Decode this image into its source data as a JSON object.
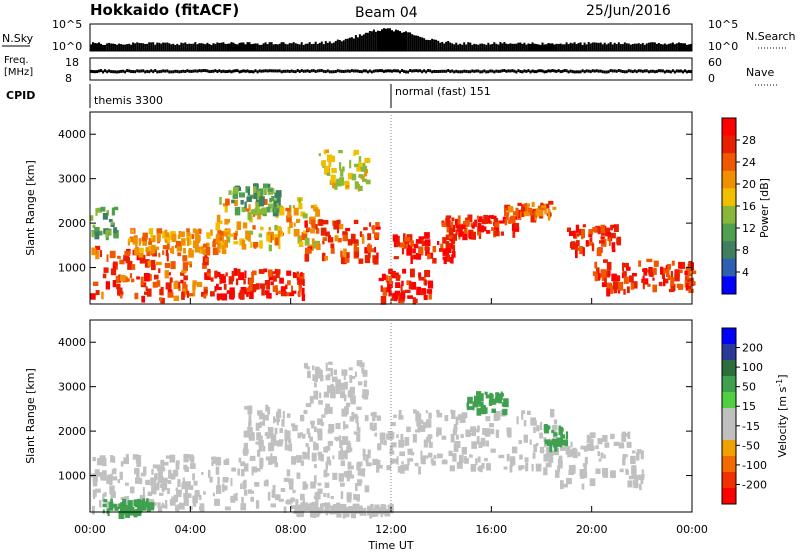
{
  "header": {
    "station": "Hokkaido (fitACF)",
    "beam": "Beam 04",
    "date": "25/Jun/2016"
  },
  "top_panels": {
    "nsky_label": "N.Sky",
    "nsky_ticks": [
      "10^5",
      "10^0"
    ],
    "nsearch_label": "N.Search",
    "nsearch_ticks": [
      "10^5",
      "10^0"
    ],
    "freq_label_1": "Freq.",
    "freq_label_2": "[MHz]",
    "freq_ticks": [
      "18",
      "8"
    ],
    "nave_label": "Nave",
    "nave_ticks": [
      "60",
      "0"
    ],
    "cpid_label": "CPID",
    "cpid_segments": [
      "themis 3300",
      "normal (fast) 151"
    ]
  },
  "colors": {
    "power_scale": [
      "#0000ff",
      "#2f5fb0",
      "#3f7f5f",
      "#4f9f4f",
      "#88b83a",
      "#f0c000",
      "#f09000",
      "#f05800",
      "#e82000",
      "#ff0000"
    ],
    "velocity_scale": [
      "#0000ff",
      "#2a3a9a",
      "#2c6f3c",
      "#3fa04f",
      "#50d040",
      "#c0c0c0",
      "#c0c0c0",
      "#f0a000",
      "#f06a00",
      "#f03000",
      "#ff0000"
    ]
  },
  "chart_data": [
    {
      "type": "heatmap",
      "title": "Power",
      "ylabel": "Slant Range [km]",
      "xlabel": "Time UT",
      "x_ticks": [
        "00:00",
        "04:00",
        "08:00",
        "12:00",
        "16:00",
        "20:00",
        "00:00"
      ],
      "y_ticks": [
        "1000",
        "2000",
        "3000",
        "4000"
      ],
      "xlim": [
        0,
        24
      ],
      "ylim": [
        180,
        4500
      ],
      "colorbar_label": "Power [dB]",
      "colorbar_ticks": [
        "4",
        "8",
        "12",
        "16",
        "20",
        "24",
        "28"
      ],
      "regions": [
        {
          "t": [
            0,
            4.6
          ],
          "r": [
            300,
            1500
          ],
          "level": 24
        },
        {
          "t": [
            1.5,
            5.5
          ],
          "r": [
            1400,
            1900
          ],
          "level": 20
        },
        {
          "t": [
            0,
            1
          ],
          "r": [
            1800,
            2400
          ],
          "level": 10
        },
        {
          "t": [
            4.5,
            8.5
          ],
          "r": [
            400,
            1000
          ],
          "level": 26
        },
        {
          "t": [
            5,
            9
          ],
          "r": [
            1500,
            2600
          ],
          "level": 18
        },
        {
          "t": [
            5.5,
            7.5
          ],
          "r": [
            2300,
            2900
          ],
          "level": 10
        },
        {
          "t": [
            8.5,
            11.5
          ],
          "r": [
            1200,
            2100
          ],
          "level": 24
        },
        {
          "t": [
            9,
            11
          ],
          "r": [
            2800,
            3700
          ],
          "level": 16
        },
        {
          "t": [
            11.5,
            13.5
          ],
          "r": [
            300,
            1000
          ],
          "level": 26
        },
        {
          "t": [
            12,
            14.5
          ],
          "r": [
            1200,
            1800
          ],
          "level": 27
        },
        {
          "t": [
            14,
            17
          ],
          "r": [
            1800,
            2200
          ],
          "level": 26
        },
        {
          "t": [
            16.5,
            18.5
          ],
          "r": [
            2200,
            2500
          ],
          "level": 22
        },
        {
          "t": [
            19,
            21
          ],
          "r": [
            1400,
            2000
          ],
          "level": 26
        },
        {
          "t": [
            20,
            24
          ],
          "r": [
            500,
            1200
          ],
          "level": 25
        }
      ]
    },
    {
      "type": "heatmap",
      "title": "Velocity",
      "ylabel": "Slant Range [km]",
      "xlabel": "Time UT",
      "x_ticks": [
        "00:00",
        "04:00",
        "08:00",
        "12:00",
        "16:00",
        "20:00",
        "00:00"
      ],
      "y_ticks": [
        "1000",
        "2000",
        "3000",
        "4000"
      ],
      "xlim": [
        0,
        24
      ],
      "ylim": [
        180,
        4500
      ],
      "colorbar_label": "Velocity [m s^-1]",
      "colorbar_ticks": [
        "200",
        "100",
        "50",
        "15",
        "-15",
        "-50",
        "-100",
        "-200"
      ],
      "regions": [
        {
          "t": [
            0,
            11
          ],
          "r": [
            300,
            1500
          ],
          "level": 0
        },
        {
          "t": [
            6,
            11
          ],
          "r": [
            1500,
            2600
          ],
          "level": 0
        },
        {
          "t": [
            8.5,
            11
          ],
          "r": [
            2600,
            3600
          ],
          "level": 0
        },
        {
          "t": [
            11,
            18.5
          ],
          "r": [
            1200,
            2500
          ],
          "level": 0
        },
        {
          "t": [
            18,
            22
          ],
          "r": [
            800,
            2000
          ],
          "level": 0
        },
        {
          "t": [
            0.5,
            2.5
          ],
          "r": [
            200,
            500
          ],
          "level": 60
        },
        {
          "t": [
            15,
            16.5
          ],
          "r": [
            2500,
            2900
          ],
          "level": 60
        },
        {
          "t": [
            18,
            19
          ],
          "r": [
            1700,
            2200
          ],
          "level": 60
        },
        {
          "t": [
            8,
            12
          ],
          "r": [
            200,
            400
          ],
          "level": -40
        }
      ]
    }
  ]
}
